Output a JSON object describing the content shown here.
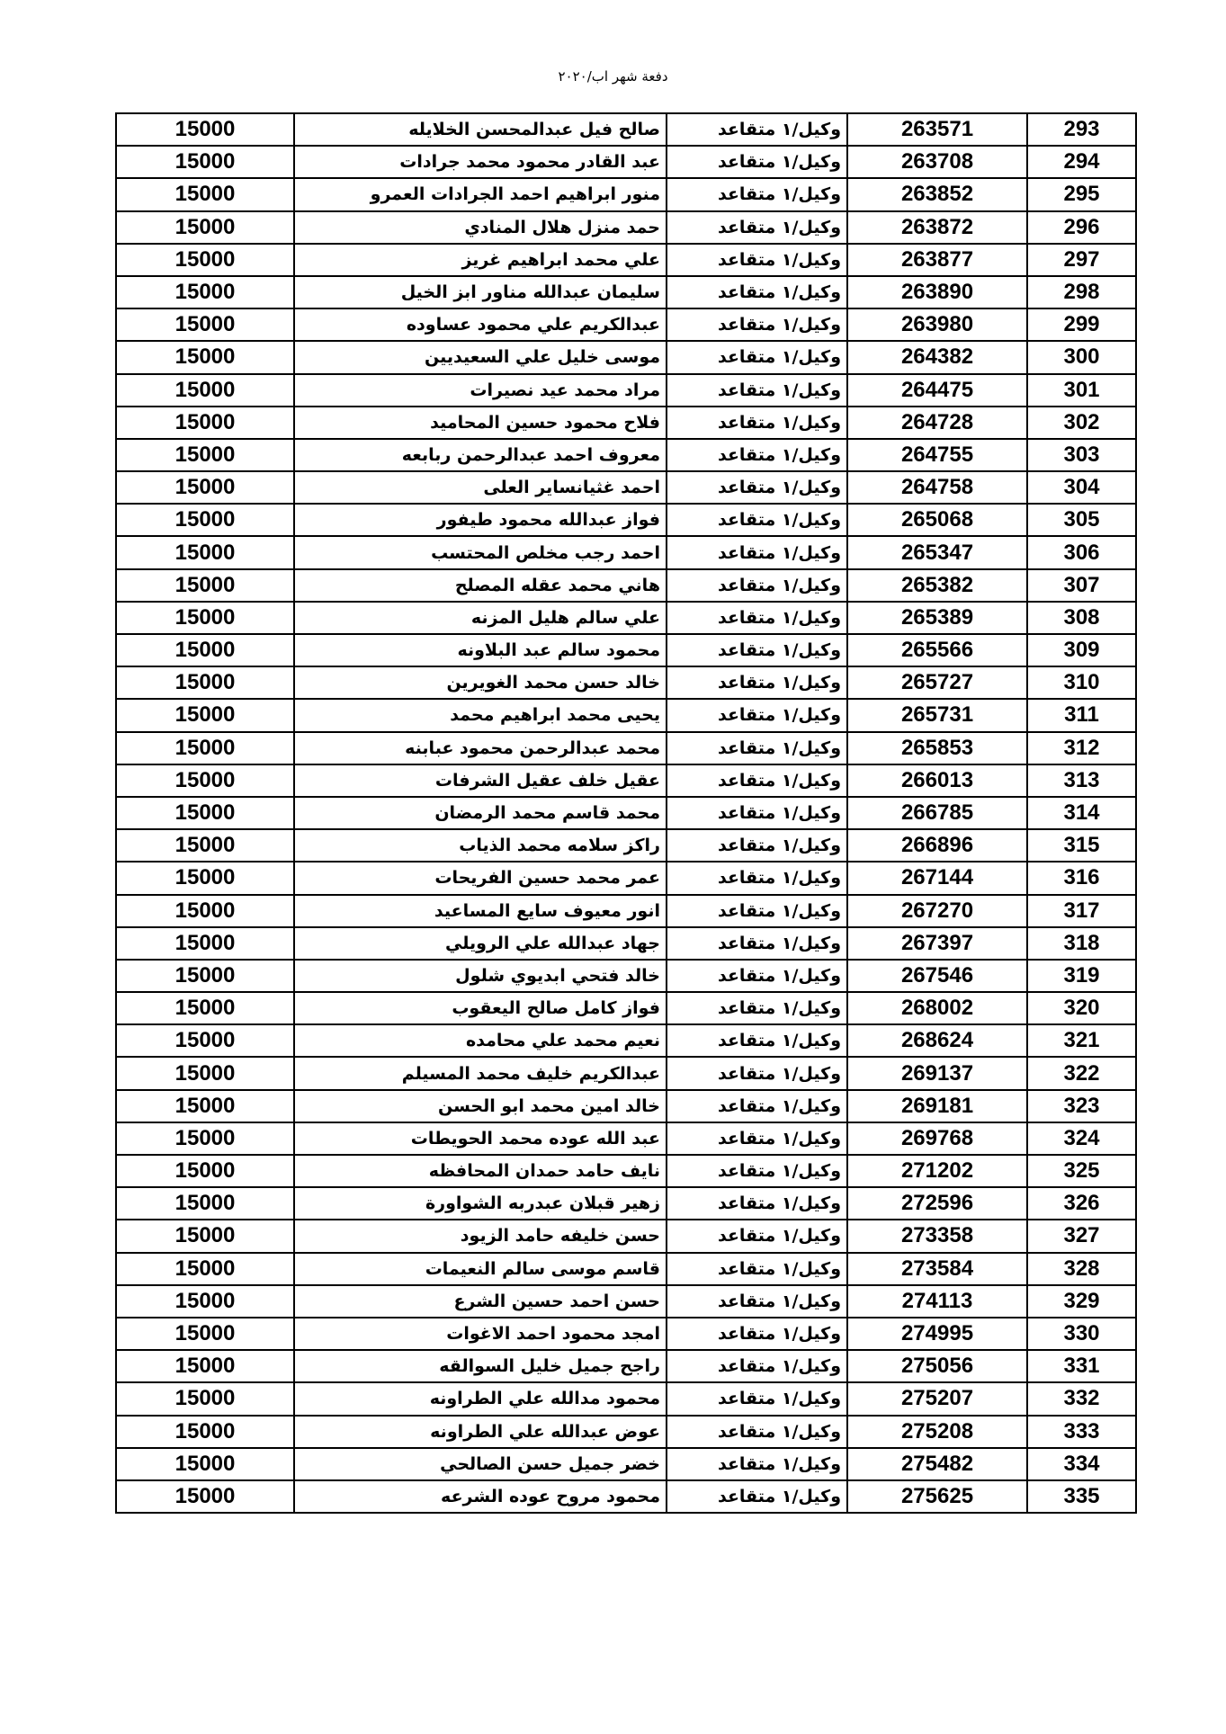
{
  "document": {
    "title": "دفعة شهر اب/٢٠٢٠"
  },
  "table": {
    "rank": "وكيل/١ متقاعد",
    "rows": [
      {
        "no": "293",
        "id": "263571",
        "name": "صالح فيل عبدالمحسن الخلايله",
        "amount": "15000"
      },
      {
        "no": "294",
        "id": "263708",
        "name": "عبد القادر محمود محمد جرادات",
        "amount": "15000"
      },
      {
        "no": "295",
        "id": "263852",
        "name": "منور ابراهيم احمد الجرادات العمرو",
        "amount": "15000"
      },
      {
        "no": "296",
        "id": "263872",
        "name": "حمد منزل هلال المنادي",
        "amount": "15000"
      },
      {
        "no": "297",
        "id": "263877",
        "name": "علي محمد ابراهيم غريز",
        "amount": "15000"
      },
      {
        "no": "298",
        "id": "263890",
        "name": "سليمان عبدالله مناور ابز الخيل",
        "amount": "15000"
      },
      {
        "no": "299",
        "id": "263980",
        "name": "عبدالكريم علي محمود عساوده",
        "amount": "15000"
      },
      {
        "no": "300",
        "id": "264382",
        "name": "موسى خليل علي السعيديين",
        "amount": "15000"
      },
      {
        "no": "301",
        "id": "264475",
        "name": "مراد محمد عيد نصيرات",
        "amount": "15000"
      },
      {
        "no": "302",
        "id": "264728",
        "name": "فلاح محمود حسين المحاميد",
        "amount": "15000"
      },
      {
        "no": "303",
        "id": "264755",
        "name": "معروف احمد عبدالرحمن ربابعه",
        "amount": "15000"
      },
      {
        "no": "304",
        "id": "264758",
        "name": "احمد غثيانساير العلى",
        "amount": "15000"
      },
      {
        "no": "305",
        "id": "265068",
        "name": "فواز عبدالله محمود طيفور",
        "amount": "15000"
      },
      {
        "no": "306",
        "id": "265347",
        "name": "احمد رجب مخلص المحتسب",
        "amount": "15000"
      },
      {
        "no": "307",
        "id": "265382",
        "name": "هاني محمد عقله المصلح",
        "amount": "15000"
      },
      {
        "no": "308",
        "id": "265389",
        "name": "علي سالم هليل المزنه",
        "amount": "15000"
      },
      {
        "no": "309",
        "id": "265566",
        "name": "محمود سالم عبد البلاونه",
        "amount": "15000"
      },
      {
        "no": "310",
        "id": "265727",
        "name": "خالد حسن محمد الغويرين",
        "amount": "15000"
      },
      {
        "no": "311",
        "id": "265731",
        "name": "يحيى محمد ابراهيم محمد",
        "amount": "15000"
      },
      {
        "no": "312",
        "id": "265853",
        "name": "محمد عبدالرحمن محمود عبابنه",
        "amount": "15000"
      },
      {
        "no": "313",
        "id": "266013",
        "name": "عقيل خلف عقيل الشرفات",
        "amount": "15000"
      },
      {
        "no": "314",
        "id": "266785",
        "name": "محمد قاسم محمد الرمضان",
        "amount": "15000"
      },
      {
        "no": "315",
        "id": "266896",
        "name": "راكز سلامه محمد الذياب",
        "amount": "15000"
      },
      {
        "no": "316",
        "id": "267144",
        "name": "عمر محمد حسين الفريحات",
        "amount": "15000"
      },
      {
        "no": "317",
        "id": "267270",
        "name": "انور معيوف سايع المساعيد",
        "amount": "15000"
      },
      {
        "no": "318",
        "id": "267397",
        "name": "جهاد عبدالله علي الرويلي",
        "amount": "15000"
      },
      {
        "no": "319",
        "id": "267546",
        "name": "خالد فتحي ابديوي شلول",
        "amount": "15000"
      },
      {
        "no": "320",
        "id": "268002",
        "name": "فواز كامل صالح اليعقوب",
        "amount": "15000"
      },
      {
        "no": "321",
        "id": "268624",
        "name": "نعيم محمد علي محامده",
        "amount": "15000"
      },
      {
        "no": "322",
        "id": "269137",
        "name": "عبدالكريم خليف محمد المسيلم",
        "amount": "15000"
      },
      {
        "no": "323",
        "id": "269181",
        "name": "خالد امين محمد ابو الحسن",
        "amount": "15000"
      },
      {
        "no": "324",
        "id": "269768",
        "name": "عبد الله عوده محمد الحويطات",
        "amount": "15000"
      },
      {
        "no": "325",
        "id": "271202",
        "name": "نايف حامد حمدان المحافظه",
        "amount": "15000"
      },
      {
        "no": "326",
        "id": "272596",
        "name": "زهير قبلان عبدربه الشواورة",
        "amount": "15000"
      },
      {
        "no": "327",
        "id": "273358",
        "name": "حسن خليفه حامد الزيود",
        "amount": "15000"
      },
      {
        "no": "328",
        "id": "273584",
        "name": "قاسم موسى سالم النعيمات",
        "amount": "15000"
      },
      {
        "no": "329",
        "id": "274113",
        "name": "حسن احمد حسين الشرع",
        "amount": "15000"
      },
      {
        "no": "330",
        "id": "274995",
        "name": "امجد محمود احمد الاغوات",
        "amount": "15000"
      },
      {
        "no": "331",
        "id": "275056",
        "name": "راجح جميل خليل السوالقه",
        "amount": "15000"
      },
      {
        "no": "332",
        "id": "275207",
        "name": "محمود مدالله علي الطراونه",
        "amount": "15000"
      },
      {
        "no": "333",
        "id": "275208",
        "name": "عوض عبدالله علي الطراونه",
        "amount": "15000"
      },
      {
        "no": "334",
        "id": "275482",
        "name": "خضر جميل حسن الصالحي",
        "amount": "15000"
      },
      {
        "no": "335",
        "id": "275625",
        "name": "محمود مروح عوده الشرعه",
        "amount": "15000"
      }
    ]
  }
}
